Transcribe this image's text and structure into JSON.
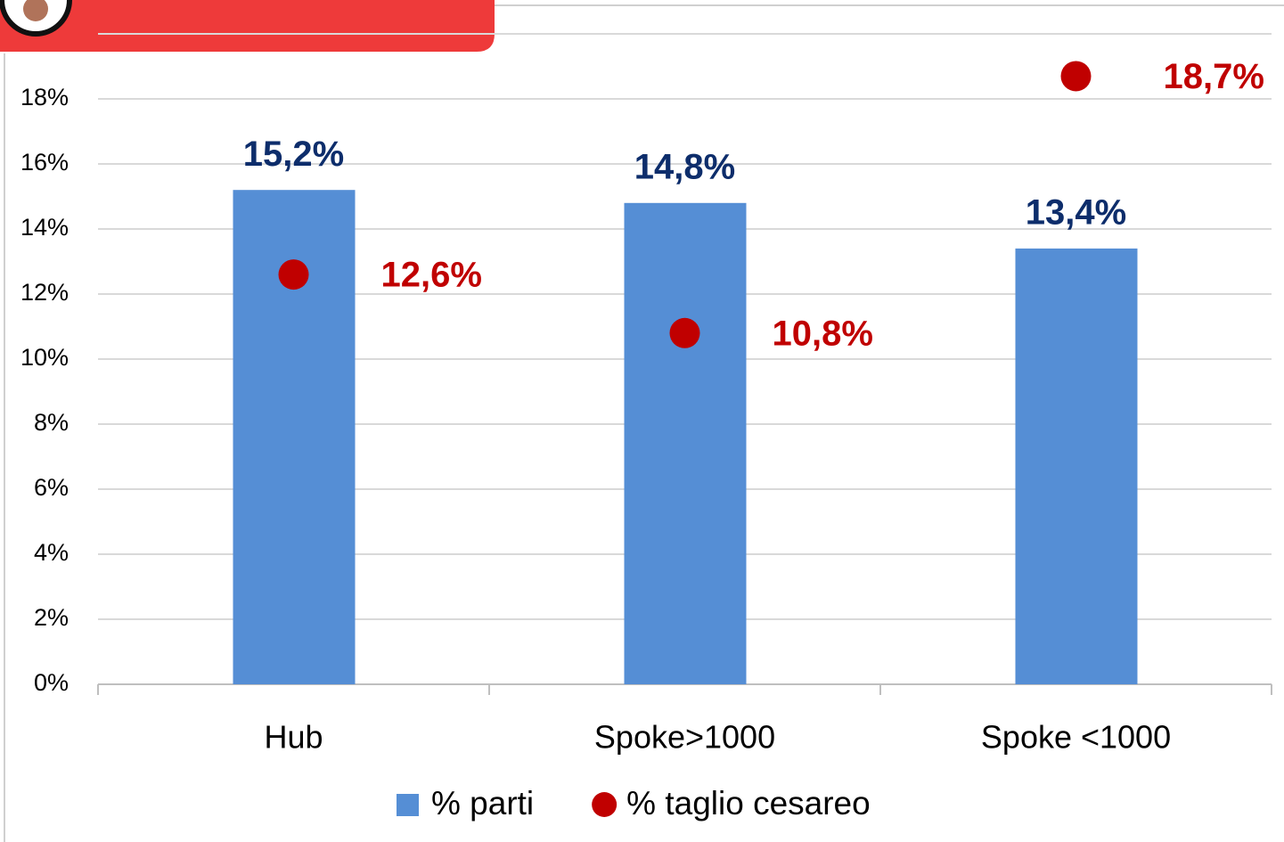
{
  "chart_data": {
    "type": "bar",
    "categories": [
      "Hub",
      "Spoke>1000",
      "Spoke <1000"
    ],
    "series": [
      {
        "name": "% parti",
        "type": "bar",
        "color": "#558ed5",
        "label_color": "#0d2d6b",
        "values": [
          15.2,
          14.8,
          13.4
        ],
        "value_labels": [
          "15,2%",
          "14,8%",
          "13,4%"
        ]
      },
      {
        "name": "% taglio cesareo",
        "type": "scatter",
        "color": "#c00000",
        "label_color": "#c00000",
        "values": [
          12.6,
          10.8,
          18.7
        ],
        "value_labels": [
          "12,6%",
          "10,8%",
          "18,7%"
        ]
      }
    ],
    "ylim": [
      0,
      20
    ],
    "yticks": [
      {
        "value": 0,
        "label": "0%"
      },
      {
        "value": 2,
        "label": "2%"
      },
      {
        "value": 4,
        "label": "4%"
      },
      {
        "value": 6,
        "label": "6%"
      },
      {
        "value": 8,
        "label": "8%"
      },
      {
        "value": 10,
        "label": "10%"
      },
      {
        "value": 12,
        "label": "12%"
      },
      {
        "value": 14,
        "label": "14%"
      },
      {
        "value": 16,
        "label": "16%"
      },
      {
        "value": 18,
        "label": "18%"
      }
    ],
    "grid": true,
    "legend": "bottom"
  }
}
